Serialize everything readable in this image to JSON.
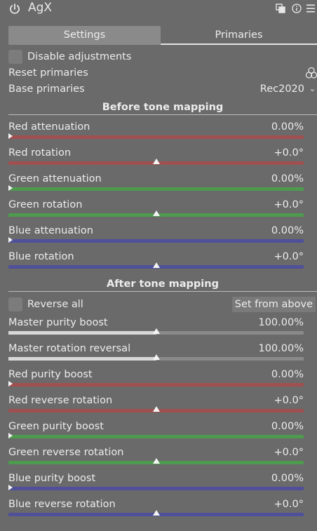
{
  "header": {
    "title": "AgX",
    "icons": [
      "power-icon",
      "multi-instance-icon",
      "reset-icon",
      "presets-icon"
    ]
  },
  "tabs": [
    {
      "label": "Settings",
      "active": true
    },
    {
      "label": "Primaries",
      "active": false
    }
  ],
  "disable_adjustments": {
    "label": "Disable adjustments",
    "checked": false
  },
  "reset_primaries": {
    "label": "Reset primaries",
    "icon": "circles-icon"
  },
  "base_primaries": {
    "label": "Base primaries",
    "value": "Rec2020"
  },
  "before": {
    "title": "Before tone mapping",
    "sliders": [
      {
        "label": "Red attenuation",
        "value": "0.00%",
        "color": "#a05050",
        "position": 0.0,
        "centered": false
      },
      {
        "label": "Red rotation",
        "value": "+0.0°",
        "color": "#a05050",
        "position": 0.5,
        "centered": true
      },
      {
        "label": "Green attenuation",
        "value": "0.00%",
        "color": "#4e9a4e",
        "position": 0.0,
        "centered": false
      },
      {
        "label": "Green rotation",
        "value": "+0.0°",
        "color": "#4e9a4e",
        "position": 0.5,
        "centered": true
      },
      {
        "label": "Blue attenuation",
        "value": "0.00%",
        "color": "#50509a",
        "position": 0.0,
        "centered": false
      },
      {
        "label": "Blue rotation",
        "value": "+0.0°",
        "color": "#50509a",
        "position": 0.5,
        "centered": true
      }
    ]
  },
  "after": {
    "title": "After tone mapping",
    "reverse_all": {
      "label": "Reverse all",
      "checked": false
    },
    "set_from_above": "Set from above",
    "sliders": [
      {
        "label": "Master purity boost",
        "value": "100.00%",
        "color": "#8a8a8a",
        "position": 0.5,
        "centered": true,
        "filled": true
      },
      {
        "label": "Master rotation reversal",
        "value": "100.00%",
        "color": "#8a8a8a",
        "position": 0.5,
        "centered": true,
        "filled": true
      },
      {
        "label": "Red purity boost",
        "value": "0.00%",
        "color": "#a05050",
        "position": 0.0,
        "centered": false
      },
      {
        "label": "Red reverse rotation",
        "value": "+0.0°",
        "color": "#a05050",
        "position": 0.5,
        "centered": true
      },
      {
        "label": "Green purity boost",
        "value": "0.00%",
        "color": "#4e9a4e",
        "position": 0.0,
        "centered": false
      },
      {
        "label": "Green reverse rotation",
        "value": "+0.0°",
        "color": "#4e9a4e",
        "position": 0.5,
        "centered": true
      },
      {
        "label": "Blue purity boost",
        "value": "0.00%",
        "color": "#50509a",
        "position": 0.0,
        "centered": false
      },
      {
        "label": "Blue reverse rotation",
        "value": "+0.0°",
        "color": "#50509a",
        "position": 0.5,
        "centered": true
      }
    ]
  }
}
